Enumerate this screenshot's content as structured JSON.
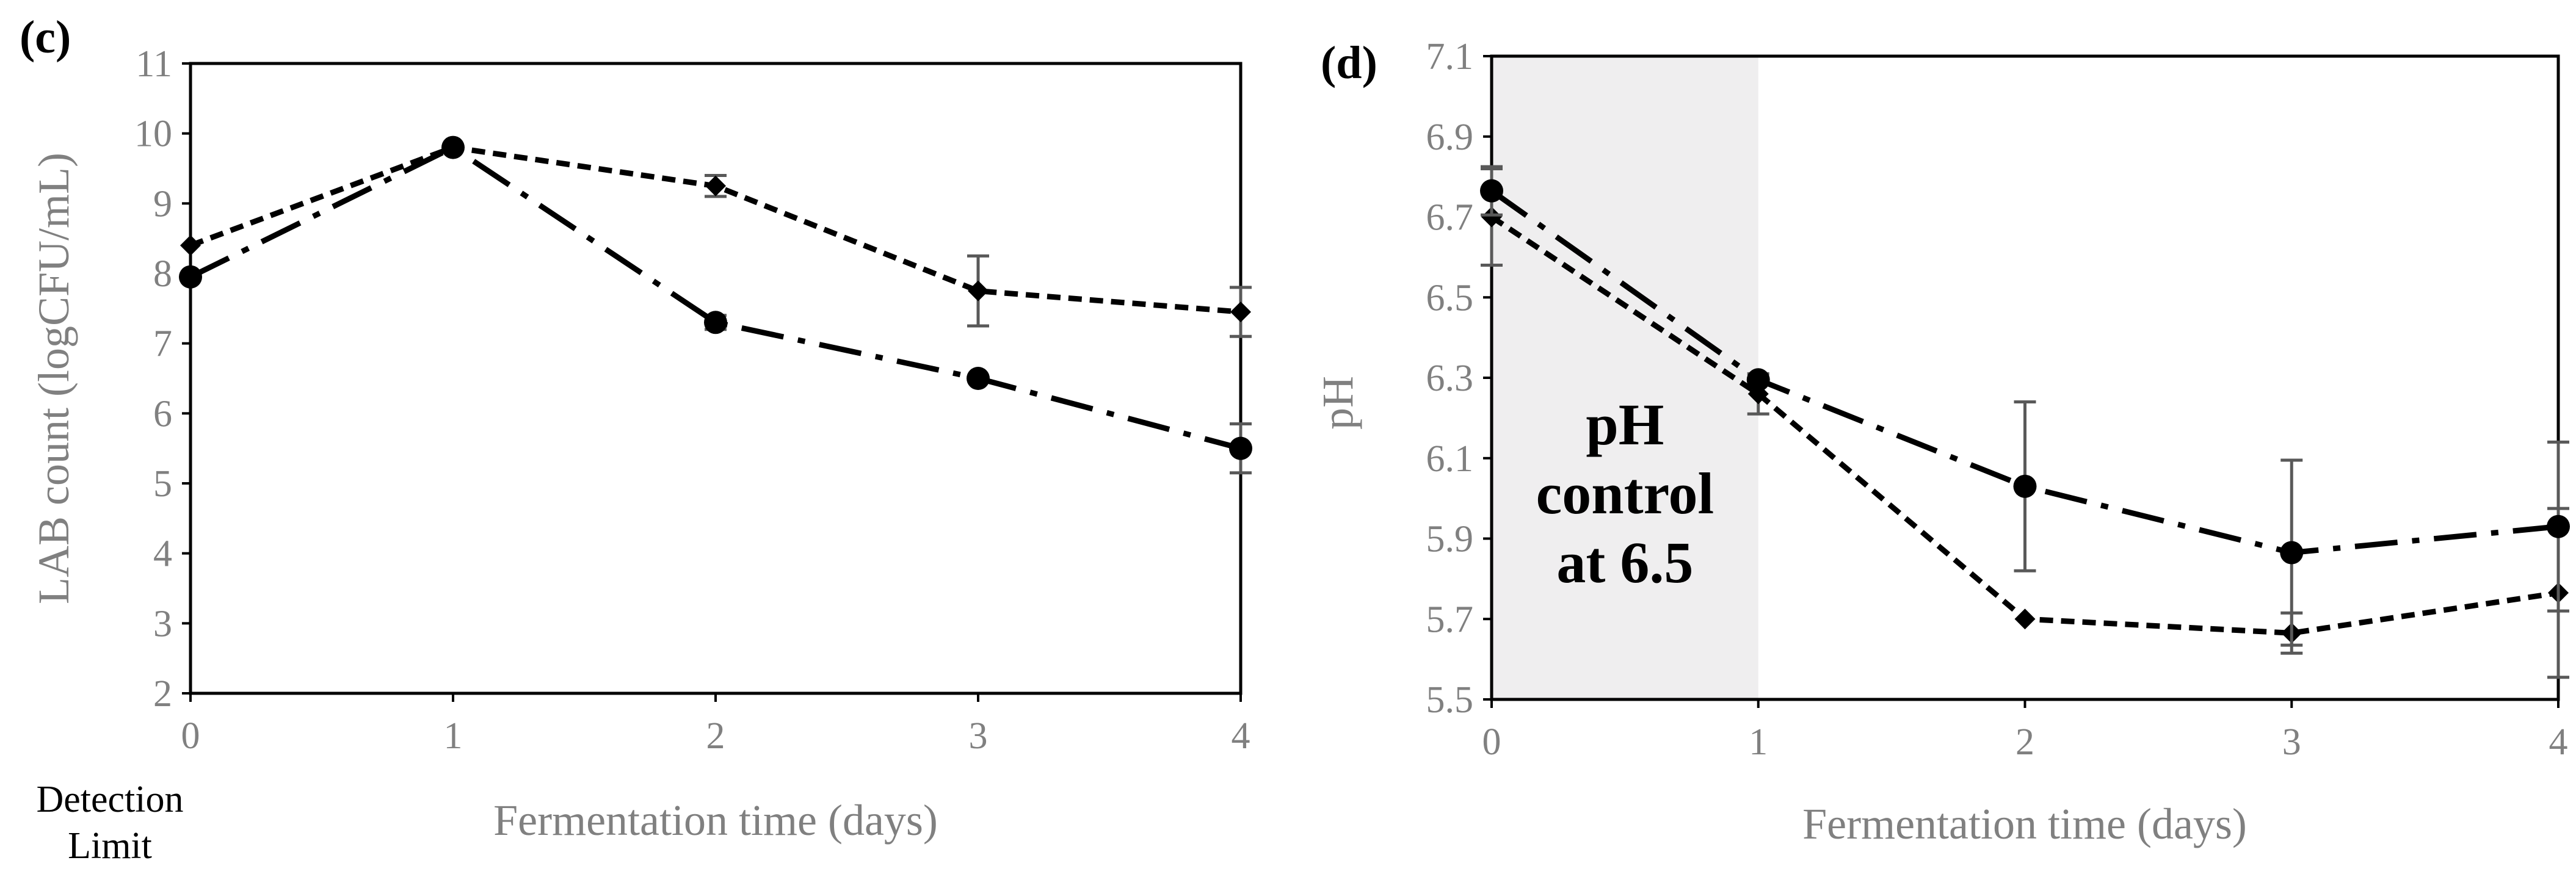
{
  "chart_data": [
    {
      "type": "line",
      "panel_label": "(c)",
      "xlabel": "Fermentation time (days)",
      "ylabel": "LAB count (logCFU/mL)",
      "xlim": [
        0,
        4
      ],
      "ylim": [
        2,
        11
      ],
      "x_ticks": [
        "0",
        "1",
        "2",
        "3",
        "4"
      ],
      "y_ticks": [
        "2",
        "3",
        "4",
        "5",
        "6",
        "7",
        "8",
        "9",
        "10",
        "11"
      ],
      "note": [
        "Detection",
        "Limit"
      ],
      "x": [
        0,
        1,
        2,
        3,
        4
      ],
      "series": [
        {
          "name": "diamond, dashed",
          "marker": "diamond",
          "dash": "short-dash",
          "values": [
            8.4,
            9.8,
            9.25,
            7.75,
            7.45
          ],
          "errors": [
            0.0,
            0.0,
            0.15,
            0.5,
            0.35
          ]
        },
        {
          "name": "circle, dash-dot",
          "marker": "circle",
          "dash": "dash-dot",
          "values": [
            7.95,
            9.8,
            7.3,
            6.5,
            5.5
          ],
          "errors": [
            0.0,
            0.0,
            0.1,
            0.0,
            0.35
          ]
        }
      ]
    },
    {
      "type": "line",
      "panel_label": "(d)",
      "xlabel": "Fermentation time (days)",
      "ylabel": "pH",
      "xlim": [
        0,
        4
      ],
      "ylim": [
        5.5,
        7.1
      ],
      "x_ticks": [
        "0",
        "1",
        "2",
        "3",
        "4"
      ],
      "y_ticks": [
        "5.5",
        "5.7",
        "5.9",
        "6.1",
        "6.3",
        "6.5",
        "6.7",
        "6.9",
        "7.1"
      ],
      "shaded_region": {
        "x_from": 0,
        "x_to": 1,
        "color": "#efeeef",
        "label_lines": [
          "pH",
          "control",
          "at 6.5"
        ]
      },
      "x": [
        0,
        1,
        2,
        3,
        4
      ],
      "series": [
        {
          "name": "diamond, dashed",
          "marker": "diamond",
          "dash": "short-dash",
          "values": [
            6.7,
            6.26,
            5.7,
            5.665,
            5.765
          ],
          "errors": [
            0.12,
            0.05,
            0.0,
            0.05,
            0.21
          ]
        },
        {
          "name": "circle, dash-dot",
          "marker": "circle",
          "dash": "dash-dot",
          "values": [
            6.765,
            6.295,
            6.03,
            5.865,
            5.93
          ],
          "errors": [
            0.06,
            0.0,
            0.21,
            0.23,
            0.21
          ]
        }
      ]
    }
  ]
}
